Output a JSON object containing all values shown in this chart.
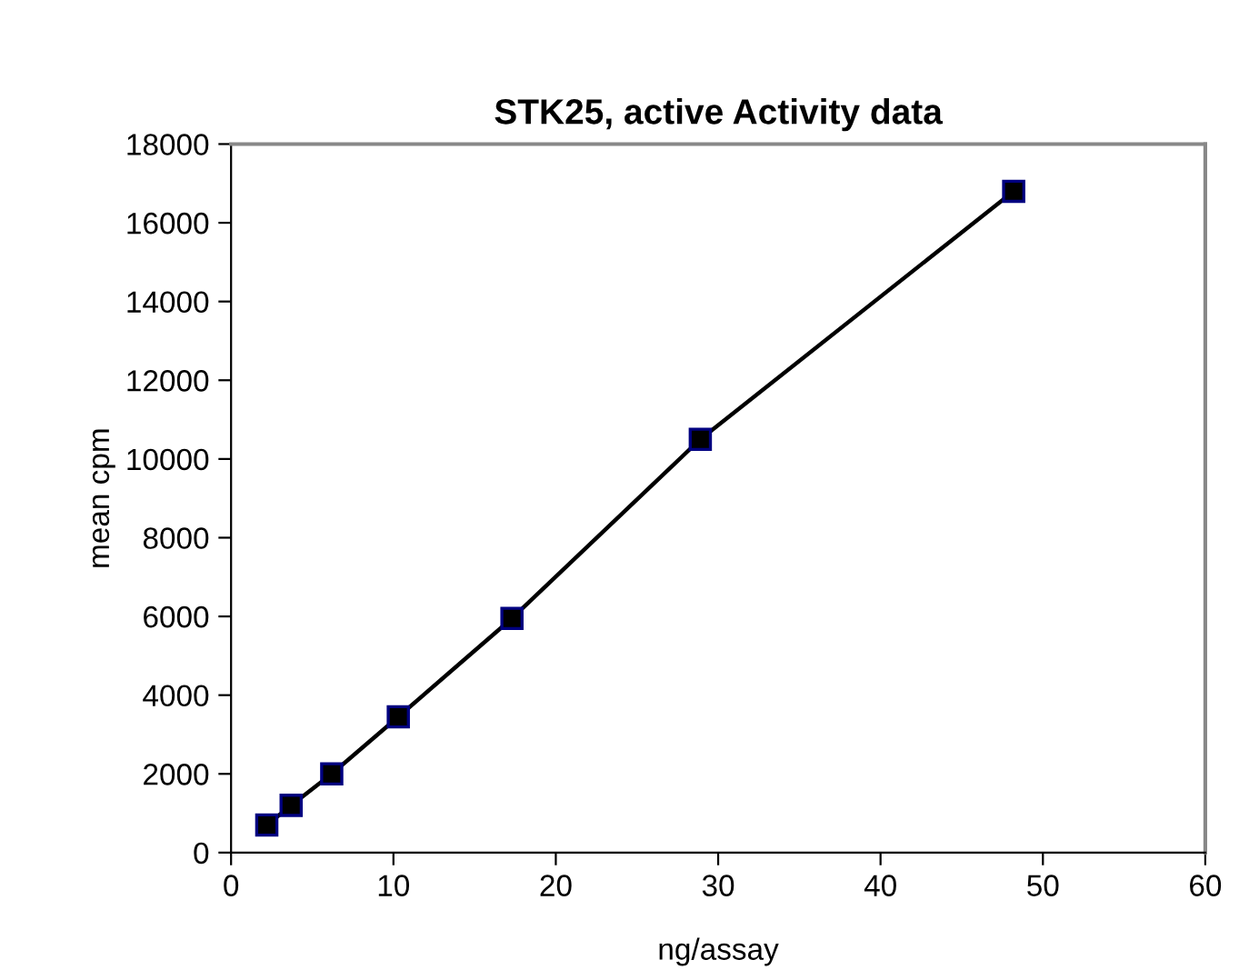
{
  "chart_data": {
    "type": "line",
    "title": "STK25, active Activity data",
    "xlabel": "ng/assay",
    "ylabel": "mean cpm",
    "xlim": [
      0,
      60
    ],
    "xticks": [
      0,
      10,
      20,
      30,
      40,
      50,
      60
    ],
    "ylim": [
      0,
      18000
    ],
    "yticks": [
      0,
      2000,
      4000,
      6000,
      8000,
      10000,
      12000,
      14000,
      16000,
      18000
    ],
    "grid": false,
    "legend": false,
    "marker": "square",
    "line_style": "solid",
    "series": [
      {
        "color": "#000000",
        "x": [
          2.2,
          3.7,
          6.2,
          10.3,
          17.3,
          28.9,
          48.2
        ],
        "values": [
          700,
          1200,
          2000,
          3450,
          5950,
          10500,
          16800
        ]
      }
    ]
  }
}
